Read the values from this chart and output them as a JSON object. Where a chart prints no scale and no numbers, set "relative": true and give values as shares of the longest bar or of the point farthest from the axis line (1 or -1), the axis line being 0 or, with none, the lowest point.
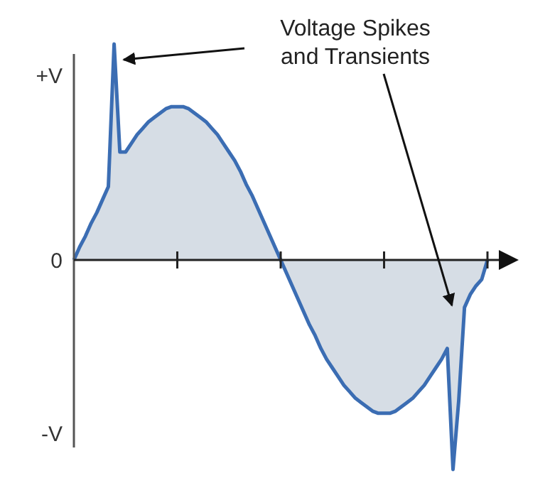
{
  "chart_data": {
    "type": "area",
    "relative": true,
    "categories": [
      null,
      null,
      null,
      null,
      null,
      null,
      null,
      null,
      null,
      null,
      null,
      null,
      null,
      null,
      null,
      null,
      null,
      null,
      null,
      null,
      null,
      null,
      null,
      null,
      null,
      null,
      null,
      null,
      null,
      null,
      null,
      null,
      null,
      null,
      null,
      null,
      null,
      null,
      null,
      null,
      null,
      null,
      null,
      null,
      null,
      null,
      null,
      null,
      null,
      null,
      null,
      null,
      null,
      null,
      null,
      null,
      null,
      null,
      null,
      null,
      null,
      null,
      null,
      null,
      null,
      null,
      null,
      null,
      null,
      null,
      null,
      null,
      null
    ],
    "series": [
      {
        "color": "#3b6db3",
        "values": [
          0,
          0.06,
          0.11,
          0.17,
          0.22,
          0.28,
          0.34,
          1,
          0.5,
          0.5,
          0.54,
          0.58,
          0.61,
          0.64,
          0.66,
          0.68,
          0.7,
          0.71,
          0.71,
          0.71,
          0.7,
          0.68,
          0.66,
          0.64,
          0.61,
          0.58,
          0.54,
          0.5,
          0.46,
          0.41,
          0.35,
          0.3,
          0.24,
          0.18,
          0.12,
          0.06,
          0,
          -0.06,
          -0.12,
          -0.18,
          -0.24,
          -0.3,
          -0.35,
          -0.41,
          -0.46,
          -0.5,
          -0.54,
          -0.58,
          -0.61,
          -0.64,
          -0.66,
          -0.68,
          -0.7,
          -0.71,
          -0.71,
          -0.71,
          -0.7,
          -0.68,
          -0.66,
          -0.64,
          -0.61,
          -0.58,
          -0.54,
          -0.5,
          -0.46,
          -0.41,
          -0.97,
          -0.65,
          -0.22,
          -0.16,
          -0.12,
          -0.09,
          0
        ]
      }
    ],
    "annotations": [
      "Voltage Spikes\nand Transients",
      "+V",
      "0",
      "-V"
    ]
  }
}
